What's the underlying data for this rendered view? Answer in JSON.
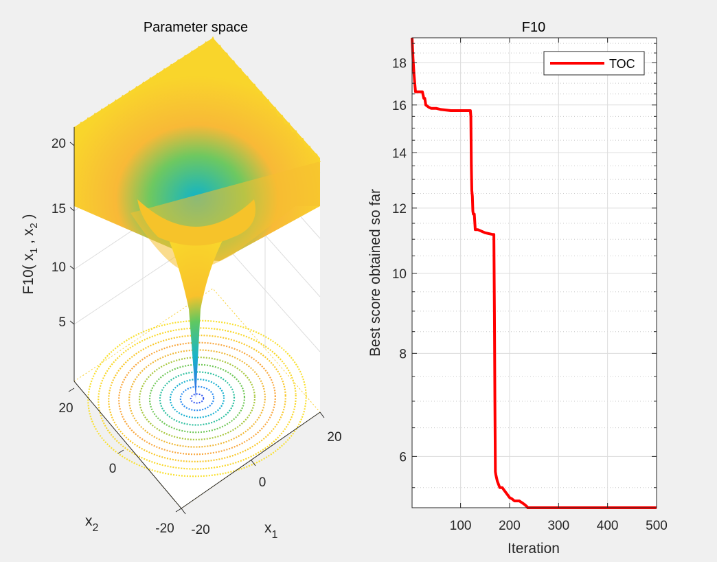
{
  "chart_data": [
    {
      "type": "surface3d",
      "title": "Parameter space",
      "zlabel": "F10( x_1 , x_2 )",
      "xlabel": "x_1",
      "ylabel": "x_2",
      "x_ticks": [
        "-20",
        "0",
        "20"
      ],
      "y_ticks": [
        "-20",
        "0",
        "20"
      ],
      "z_ticks": [
        "5",
        "10",
        "15",
        "20"
      ],
      "xlim": [
        -32,
        32
      ],
      "ylim": [
        -32,
        32
      ],
      "zlim": [
        0,
        22
      ],
      "function": "Ackley",
      "colormap": "parula",
      "contour_projection": true
    },
    {
      "type": "line",
      "title": "F10",
      "xlabel": "Iteration",
      "ylabel": "Best score obtained so far",
      "xlim": [
        1,
        500
      ],
      "ylim": [
        5.2,
        19.3
      ],
      "yscale": "log",
      "grid": true,
      "minor_grid": true,
      "x_ticks": [
        100,
        200,
        300,
        400,
        500
      ],
      "y_ticks": [
        6,
        8,
        10,
        12,
        14,
        16,
        18
      ],
      "legend": {
        "entries": [
          "TOC"
        ],
        "placement": "top-right"
      },
      "series": [
        {
          "name": "TOC",
          "color": "#ff0000",
          "x": [
            1,
            3,
            5,
            8,
            10,
            22,
            25,
            27,
            29,
            35,
            40,
            50,
            60,
            80,
            120,
            121,
            122,
            123,
            124,
            125,
            126,
            128,
            130,
            135,
            150,
            165,
            168,
            169,
            170,
            171,
            172,
            175,
            180,
            185,
            190,
            195,
            200,
            205,
            210,
            220,
            230,
            235,
            237,
            240,
            245,
            255,
            265,
            275,
            300,
            345,
            360,
            380,
            400,
            420,
            430,
            460,
            500
          ],
          "values": [
            19.3,
            18.2,
            17.4,
            16.6,
            16.6,
            16.6,
            16.3,
            16.3,
            16.0,
            15.9,
            15.85,
            15.85,
            15.8,
            15.75,
            15.75,
            15.5,
            13.5,
            12.6,
            12.4,
            11.9,
            11.8,
            11.8,
            11.3,
            11.3,
            11.2,
            11.15,
            11.15,
            9.0,
            7.0,
            5.75,
            5.7,
            5.6,
            5.5,
            5.5,
            5.45,
            5.4,
            5.35,
            5.33,
            5.3,
            5.3,
            5.25,
            5.22,
            5.2,
            5.2,
            5.15,
            5.12,
            5.1,
            5.08,
            5.07,
            5.07,
            5.05,
            5.04,
            5.03,
            5.02,
            5.01,
            5.0,
            5.0
          ]
        }
      ]
    }
  ]
}
